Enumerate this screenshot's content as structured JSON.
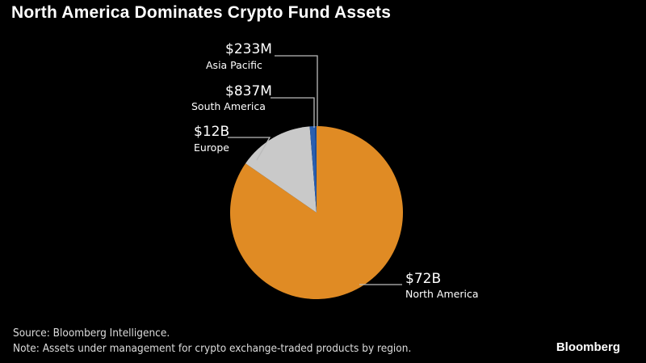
{
  "chart_data": {
    "type": "pie",
    "title": "North America Dominates Crypto Fund Assets",
    "slices": [
      {
        "label": "North America",
        "value_label": "$72B",
        "value": 72000,
        "color": "#e08b24"
      },
      {
        "label": "Europe",
        "value_label": "$12B",
        "value": 12000,
        "color": "#c9c9c9"
      },
      {
        "label": "South America",
        "value_label": "$837M",
        "value": 837,
        "color": "#2a5fb0"
      },
      {
        "label": "Asia Pacific",
        "value_label": "$233M",
        "value": 233,
        "color": "#1d4f9c"
      }
    ],
    "unit": "USD millions",
    "start": "top, clockwise"
  },
  "footer": {
    "source": "Source: Bloomberg Intelligence.",
    "note": "Note: Assets under management for crypto exchange-traded products by region.",
    "brand": "Bloomberg"
  }
}
